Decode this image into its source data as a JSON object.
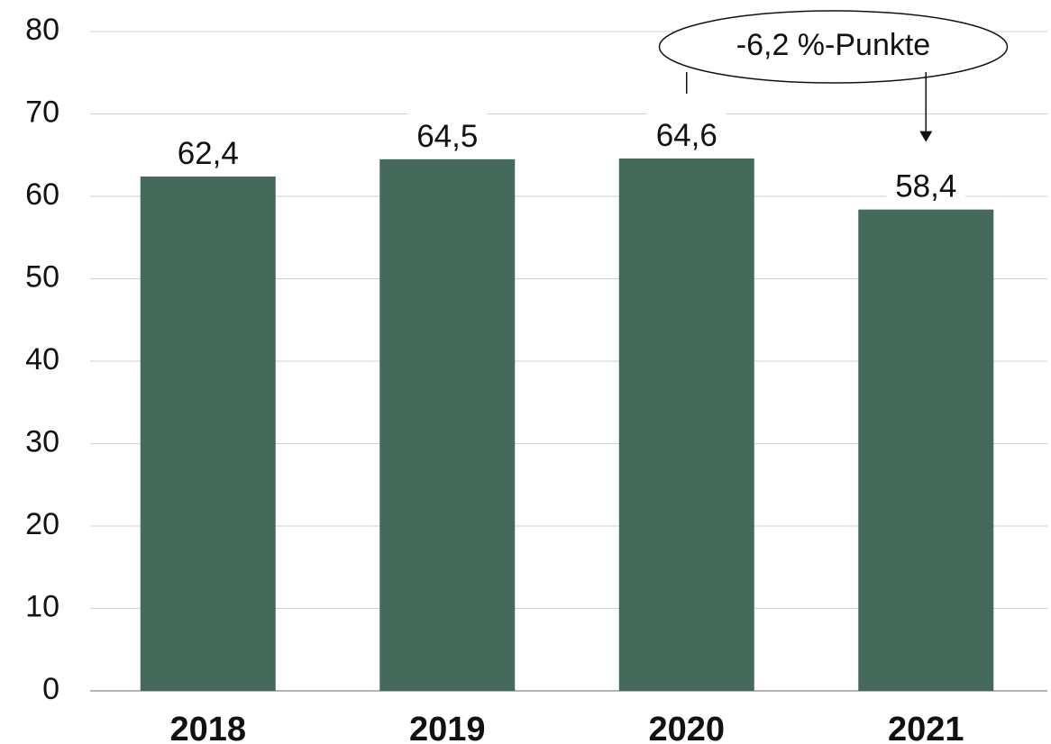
{
  "chart_data": {
    "type": "bar",
    "categories": [
      "2018",
      "2019",
      "2020",
      "2021"
    ],
    "values": [
      62.4,
      64.5,
      64.6,
      58.4
    ],
    "value_labels": [
      "62,4",
      "64,5",
      "64,6",
      "58,4"
    ],
    "title": "",
    "xlabel": "",
    "ylabel": "",
    "ylim": [
      0,
      80
    ],
    "yticks": [
      0,
      10,
      20,
      30,
      40,
      50,
      60,
      70,
      80
    ],
    "grid": "horizontal",
    "legend": "none",
    "bar_color": "#45695a",
    "annotation": {
      "text": "-6,2 %-Punkte",
      "from_category": "2020",
      "to_category": "2021"
    }
  }
}
